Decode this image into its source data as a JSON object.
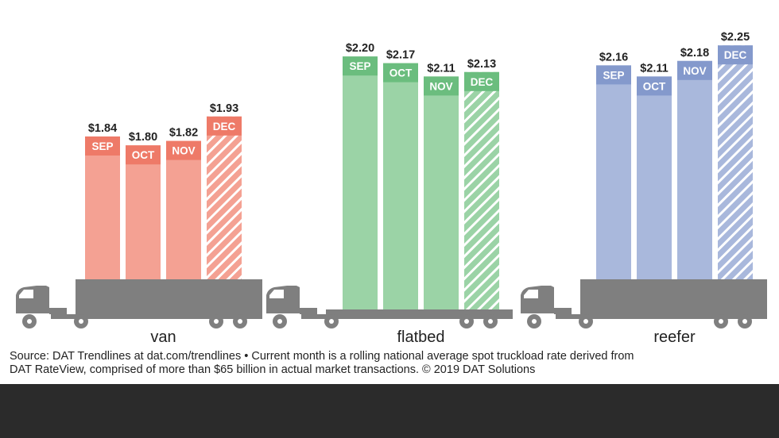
{
  "colors": {
    "van": {
      "bar": "#f4a193",
      "tag": "#ee7a68"
    },
    "flatbed": {
      "bar": "#9bd3a6",
      "tag": "#6bbd7e"
    },
    "reefer": {
      "bar": "#a9b8dc",
      "tag": "#8499cc"
    },
    "truck": "#7f7f7f",
    "value_text": "#222222"
  },
  "icons": [
    "truck-icon"
  ],
  "chart_data": {
    "type": "bar",
    "categories": [
      "SEP",
      "OCT",
      "NOV",
      "DEC"
    ],
    "groups": [
      {
        "name": "van",
        "values": [
          1.84,
          1.8,
          1.82,
          1.93
        ],
        "labels": [
          "$1.84",
          "$1.80",
          "$1.82",
          "$1.93"
        ]
      },
      {
        "name": "flatbed",
        "values": [
          2.2,
          2.17,
          2.11,
          2.13
        ],
        "labels": [
          "$2.20",
          "$2.17",
          "$2.11",
          "$2.13"
        ]
      },
      {
        "name": "reefer",
        "values": [
          2.16,
          2.11,
          2.18,
          2.25
        ],
        "labels": [
          "$2.16",
          "$2.11",
          "$2.18",
          "$2.25"
        ]
      }
    ],
    "hatched_category": "DEC",
    "title": "",
    "xlabel": "",
    "ylabel": ""
  },
  "source": {
    "line1": "Source: DAT Trendlines at dat.com/trendlines • Current month is a rolling national average spot truckload rate derived from",
    "line2": "DAT RateView, comprised of more than $65 billion in actual market transactions. © 2019 DAT Solutions"
  }
}
